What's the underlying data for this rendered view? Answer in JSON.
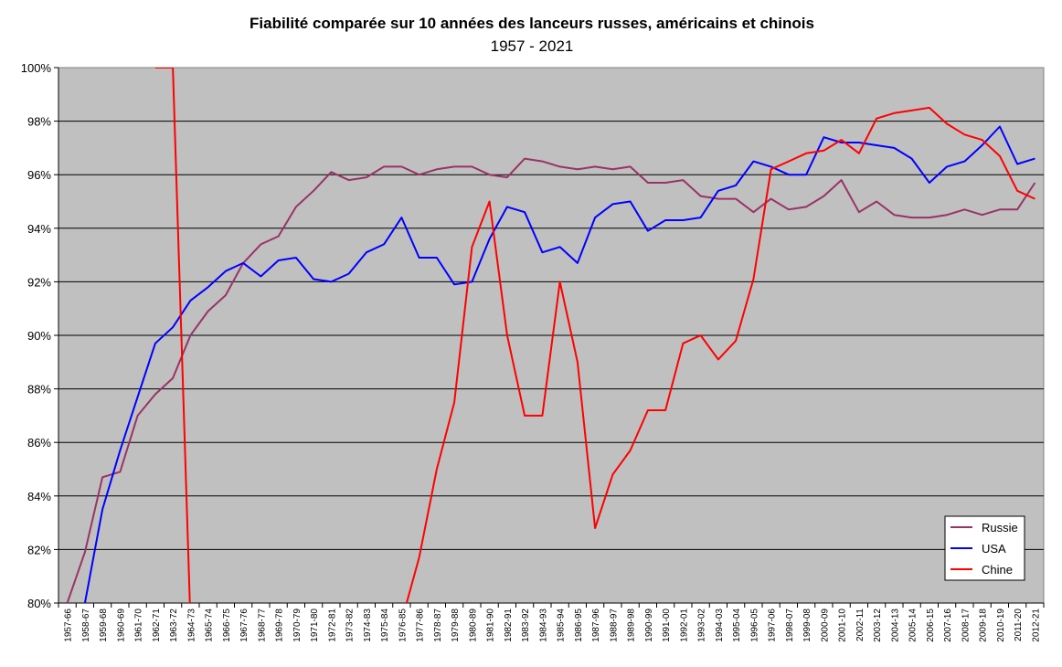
{
  "chart_data": {
    "type": "line",
    "title": "Fiabilité comparée sur 10 années des lanceurs russes, américains et chinois",
    "subtitle": "1957 - 2021",
    "ylim": [
      80,
      100
    ],
    "y_ticks": [
      "80%",
      "82%",
      "84%",
      "86%",
      "88%",
      "90%",
      "92%",
      "94%",
      "96%",
      "98%",
      "100%"
    ],
    "grid": true,
    "legend_position": "bottom-right",
    "background_color": "#C0C0C0",
    "categories": [
      "1957-66",
      "1958-67",
      "1959-68",
      "1960-69",
      "1961-70",
      "1962-71",
      "1963-72",
      "1964-73",
      "1965-74",
      "1966-75",
      "1967-76",
      "1968-77",
      "1969-78",
      "1970-79",
      "1971-80",
      "1972-81",
      "1973-82",
      "1974-83",
      "1975-84",
      "1976-85",
      "1977-86",
      "1978-87",
      "1979-88",
      "1980-89",
      "1981-90",
      "1982-91",
      "1983-92",
      "1984-93",
      "1985-94",
      "1986-95",
      "1987-96",
      "1988-97",
      "1989-98",
      "1990-99",
      "1991-00",
      "1992-01",
      "1993-02",
      "1994-03",
      "1995-04",
      "1996-05",
      "1997-06",
      "1998-07",
      "1999-08",
      "2000-09",
      "2001-10",
      "2002-11",
      "2003-12",
      "2004-13",
      "2005-14",
      "2006-15",
      "2007-16",
      "2008-17",
      "2009-18",
      "2010-19",
      "2011-20",
      "2012-21"
    ],
    "series": [
      {
        "name": "Russie",
        "color": "#993366",
        "values": [
          80.0,
          81.9,
          84.7,
          84.9,
          87.0,
          87.8,
          88.4,
          90.0,
          90.9,
          91.5,
          92.7,
          93.4,
          93.7,
          94.8,
          95.4,
          96.1,
          95.8,
          95.9,
          96.3,
          96.3,
          96.0,
          96.2,
          96.3,
          96.3,
          96.0,
          95.9,
          96.6,
          96.5,
          96.3,
          96.2,
          96.3,
          96.2,
          96.3,
          95.7,
          95.7,
          95.8,
          95.2,
          95.1,
          95.1,
          94.6,
          95.1,
          94.7,
          94.8,
          95.2,
          95.8,
          94.6,
          95.0,
          94.5,
          94.4,
          94.4,
          94.5,
          94.7,
          94.5,
          94.7,
          94.7,
          95.7
        ]
      },
      {
        "name": "USA",
        "color": "#0000FF",
        "values": [
          79.6,
          80.0,
          83.5,
          85.7,
          87.7,
          89.7,
          90.3,
          91.3,
          91.8,
          92.4,
          92.7,
          92.2,
          92.8,
          92.9,
          92.1,
          92.0,
          92.3,
          93.1,
          93.4,
          94.4,
          92.9,
          92.9,
          91.9,
          92.0,
          93.6,
          94.8,
          94.6,
          93.1,
          93.3,
          92.7,
          94.4,
          94.9,
          95.0,
          93.9,
          94.3,
          94.3,
          94.4,
          95.4,
          95.6,
          96.5,
          96.3,
          96.0,
          96.0,
          97.4,
          97.2,
          97.2,
          97.1,
          97.0,
          96.6,
          95.7,
          96.3,
          96.5,
          97.1,
          97.8,
          96.4,
          96.6
        ]
      },
      {
        "name": "Chine",
        "color": "#FF0000",
        "values": [
          null,
          null,
          null,
          null,
          null,
          100.0,
          100.0,
          null,
          null,
          null,
          null,
          null,
          null,
          null,
          null,
          null,
          null,
          null,
          null,
          null,
          81.7,
          85.0,
          87.5,
          93.3,
          95.0,
          90.0,
          87.0,
          87.0,
          92.0,
          89.0,
          82.8,
          84.8,
          85.7,
          87.2,
          87.2,
          89.7,
          90.0,
          89.1,
          89.8,
          92.1,
          96.2,
          96.5,
          96.8,
          96.9,
          97.3,
          96.8,
          98.1,
          98.3,
          98.4,
          98.5,
          97.9,
          97.5,
          97.3,
          96.7,
          95.4,
          95.1
        ]
      }
    ],
    "segments_off_scale": [
      {
        "series": "Chine",
        "from": "1963-72",
        "to": "1964-73"
      },
      {
        "series": "Chine",
        "from": "1976-85",
        "to": "1977-86"
      }
    ]
  }
}
